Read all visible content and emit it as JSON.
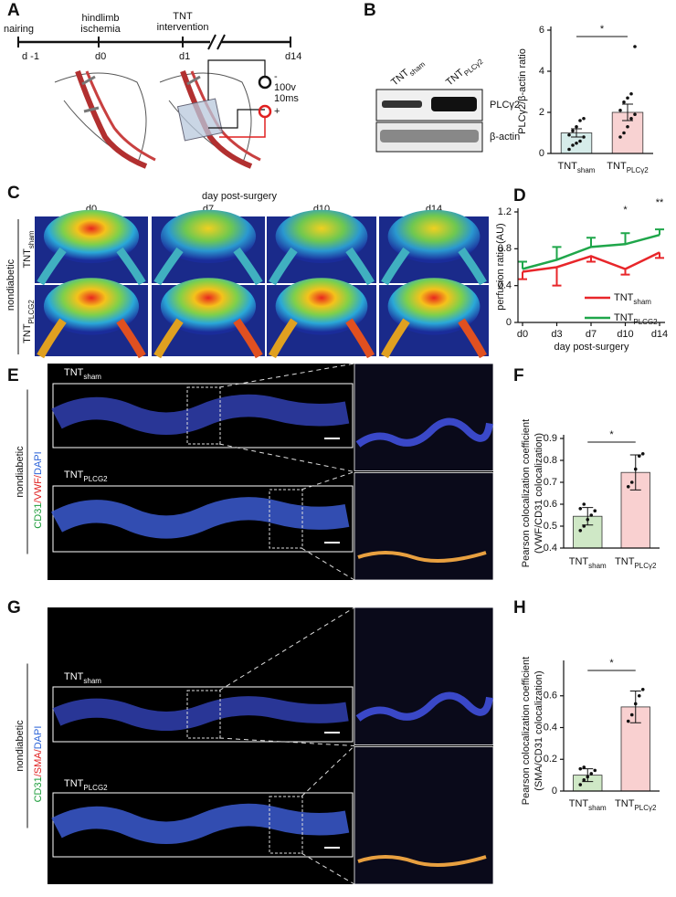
{
  "figure": {
    "panel_labels": [
      "A",
      "B",
      "C",
      "D",
      "E",
      "F",
      "G",
      "H"
    ],
    "timeline": {
      "events": [
        "nairing",
        "hindlimb",
        "ischemia",
        "TNT",
        "intervention"
      ],
      "days": [
        "d -1",
        "d0",
        "d1",
        "d14"
      ],
      "stimulus": [
        "100v",
        "10ms"
      ],
      "polarity": [
        "-",
        "+"
      ]
    },
    "blot": {
      "lanes": [
        {
          "main": "TNT",
          "sub": "sham"
        },
        {
          "main": "TNT",
          "sub": "PLCγ2"
        }
      ],
      "bands": [
        "PLCγ2",
        "β-actin"
      ]
    },
    "doppler": {
      "title": "day post-surgery",
      "days": [
        "d0",
        "d7",
        "d10",
        "d14"
      ],
      "condition": "nondiabetic",
      "groups": [
        {
          "main": "TNT",
          "sub": "sham"
        },
        {
          "main": "TNT",
          "sub": "PLCG2"
        }
      ]
    },
    "vwf": {
      "condition": "nondiabetic",
      "stain": [
        "CD31",
        "/",
        "VWF",
        "/",
        "DAPI"
      ],
      "stain_colors": [
        "#1e9e3c",
        "#e02020",
        "#e02020",
        "#e02020",
        "#2b63d8"
      ],
      "groups": [
        {
          "main": "TNT",
          "sub": "sham"
        },
        {
          "main": "TNT",
          "sub": "PLCG2"
        }
      ]
    },
    "sma": {
      "condition": "nondiabetic",
      "stain": [
        "CD31",
        "/",
        "SMA",
        "/",
        "DAPI"
      ],
      "stain_colors": [
        "#1e9e3c",
        "#e02020",
        "#e02020",
        "#e02020",
        "#2b63d8"
      ],
      "groups": [
        {
          "main": "TNT",
          "sub": "sham"
        },
        {
          "main": "TNT",
          "sub": "PLCG2"
        }
      ]
    }
  },
  "chart_data": [
    {
      "type": "bar",
      "ylabel": [
        "PLCγ2/β-actin ratio"
      ],
      "categories": [
        "TNT",
        "TNT"
      ],
      "category_subs": [
        "sham",
        "PLCγ2"
      ],
      "values": [
        1.0,
        2.0
      ],
      "errors": [
        0.2,
        0.4
      ],
      "points": [
        [
          0.2,
          0.4,
          0.5,
          0.6,
          0.8,
          0.9,
          1.1,
          1.3,
          1.6,
          1.7
        ],
        [
          0.8,
          1.0,
          1.3,
          1.7,
          1.9,
          2.1,
          2.5,
          2.7,
          2.9,
          5.2
        ]
      ],
      "colors": [
        "#d6ecea",
        "#f8d2d2"
      ],
      "ylim": [
        0,
        6
      ],
      "yticks": [
        0,
        2,
        4,
        6
      ],
      "annotations": [
        {
          "text": "*"
        }
      ]
    },
    {
      "type": "line",
      "xlabel": "day post-surgery",
      "ylabel": [
        "perfusion ratio (AU)"
      ],
      "categories": [
        "d0",
        "d3",
        "d7",
        "d10",
        "d14"
      ],
      "series": [
        {
          "name": "TNT",
          "name_sub": "sham",
          "color": "#e8262a",
          "values": [
            0.55,
            0.6,
            0.72,
            0.58,
            0.76
          ],
          "errors": [
            0.08,
            0.2,
            0.06,
            0.06,
            0.06
          ],
          "error_side": "down"
        },
        {
          "name": "TNT",
          "name_sub": "PLCG2",
          "color": "#1fa64a",
          "values": [
            0.58,
            0.68,
            0.82,
            0.85,
            0.95
          ],
          "errors": [
            0.08,
            0.14,
            0.1,
            0.12,
            0.06
          ],
          "error_side": "up"
        }
      ],
      "ylim": [
        0,
        1.2
      ],
      "yticks": [
        0,
        0.4,
        0.8,
        1.2
      ],
      "annotations": [
        {
          "text": "*",
          "x": "d10"
        },
        {
          "text": "**",
          "x": "d14"
        }
      ]
    },
    {
      "type": "bar",
      "ylabel": [
        "Pearson colocalization coefficient",
        "(VWF/CD31 colocalization)"
      ],
      "categories": [
        "TNT",
        "TNT"
      ],
      "category_subs": [
        "sham",
        "PLCγ2"
      ],
      "values": [
        0.545,
        0.745
      ],
      "errors": [
        0.04,
        0.08
      ],
      "points": [
        [
          0.48,
          0.5,
          0.53,
          0.55,
          0.57,
          0.58,
          0.6
        ],
        [
          0.68,
          0.7,
          0.76,
          0.82,
          0.83
        ]
      ],
      "colors": [
        "#cfe8c6",
        "#f9d0d0"
      ],
      "ylim": [
        0.4,
        0.9
      ],
      "yticks": [
        0.4,
        0.5,
        0.6,
        0.7,
        0.8,
        0.9
      ],
      "annotations": [
        {
          "text": "*"
        }
      ]
    },
    {
      "type": "bar",
      "ylabel": [
        "Pearson colocalization coefficient",
        "(SMA/CD31 colocalization)"
      ],
      "categories": [
        "TNT",
        "TNT"
      ],
      "category_subs": [
        "sham",
        "PLCγ2"
      ],
      "values": [
        0.1,
        0.53
      ],
      "errors": [
        0.04,
        0.1
      ],
      "points": [
        [
          0.04,
          0.07,
          0.09,
          0.11,
          0.13,
          0.14,
          0.15
        ],
        [
          0.44,
          0.48,
          0.55,
          0.6,
          0.64
        ]
      ],
      "colors": [
        "#cfe8c6",
        "#f9d0d0"
      ],
      "ylim": [
        0,
        0.8
      ],
      "yticks": [
        0,
        0.2,
        0.4,
        0.6
      ],
      "annotations": [
        {
          "text": "*"
        }
      ]
    }
  ]
}
